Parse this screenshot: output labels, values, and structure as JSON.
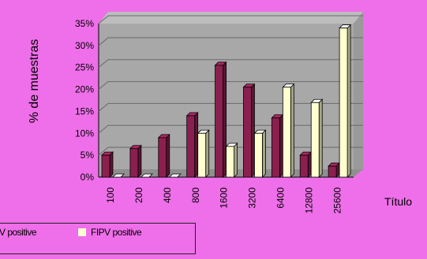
{
  "chart_data": {
    "type": "bar",
    "title": "",
    "xlabel": "Título",
    "ylabel": "% de muestras",
    "categories": [
      "100",
      "200",
      "400",
      "800",
      "1600",
      "3200",
      "6400",
      "12800",
      "25600"
    ],
    "series": [
      {
        "name": "FIPV positive",
        "values": [
          5,
          6.5,
          9,
          14,
          25.5,
          20.5,
          13.5,
          5,
          2.5
        ]
      },
      {
        "name": "FIPV positive",
        "values": [
          0,
          0,
          0,
          10,
          7,
          10,
          20.5,
          17,
          34
        ]
      }
    ],
    "yticks": [
      "0%",
      "5%",
      "10%",
      "15%",
      "20%",
      "25%",
      "30%",
      "35%"
    ],
    "ylim": [
      0,
      35
    ],
    "grid": true,
    "legend_position": "bottom-left",
    "colors": {
      "series1": "#8b2050",
      "series2": "#ffffd0",
      "background": "#ee6fe9",
      "plot_wall": "#a8a8a8",
      "floor": "#8f8f8f"
    }
  },
  "legend": {
    "item1": "V positive",
    "item2": "FIPV positive"
  }
}
